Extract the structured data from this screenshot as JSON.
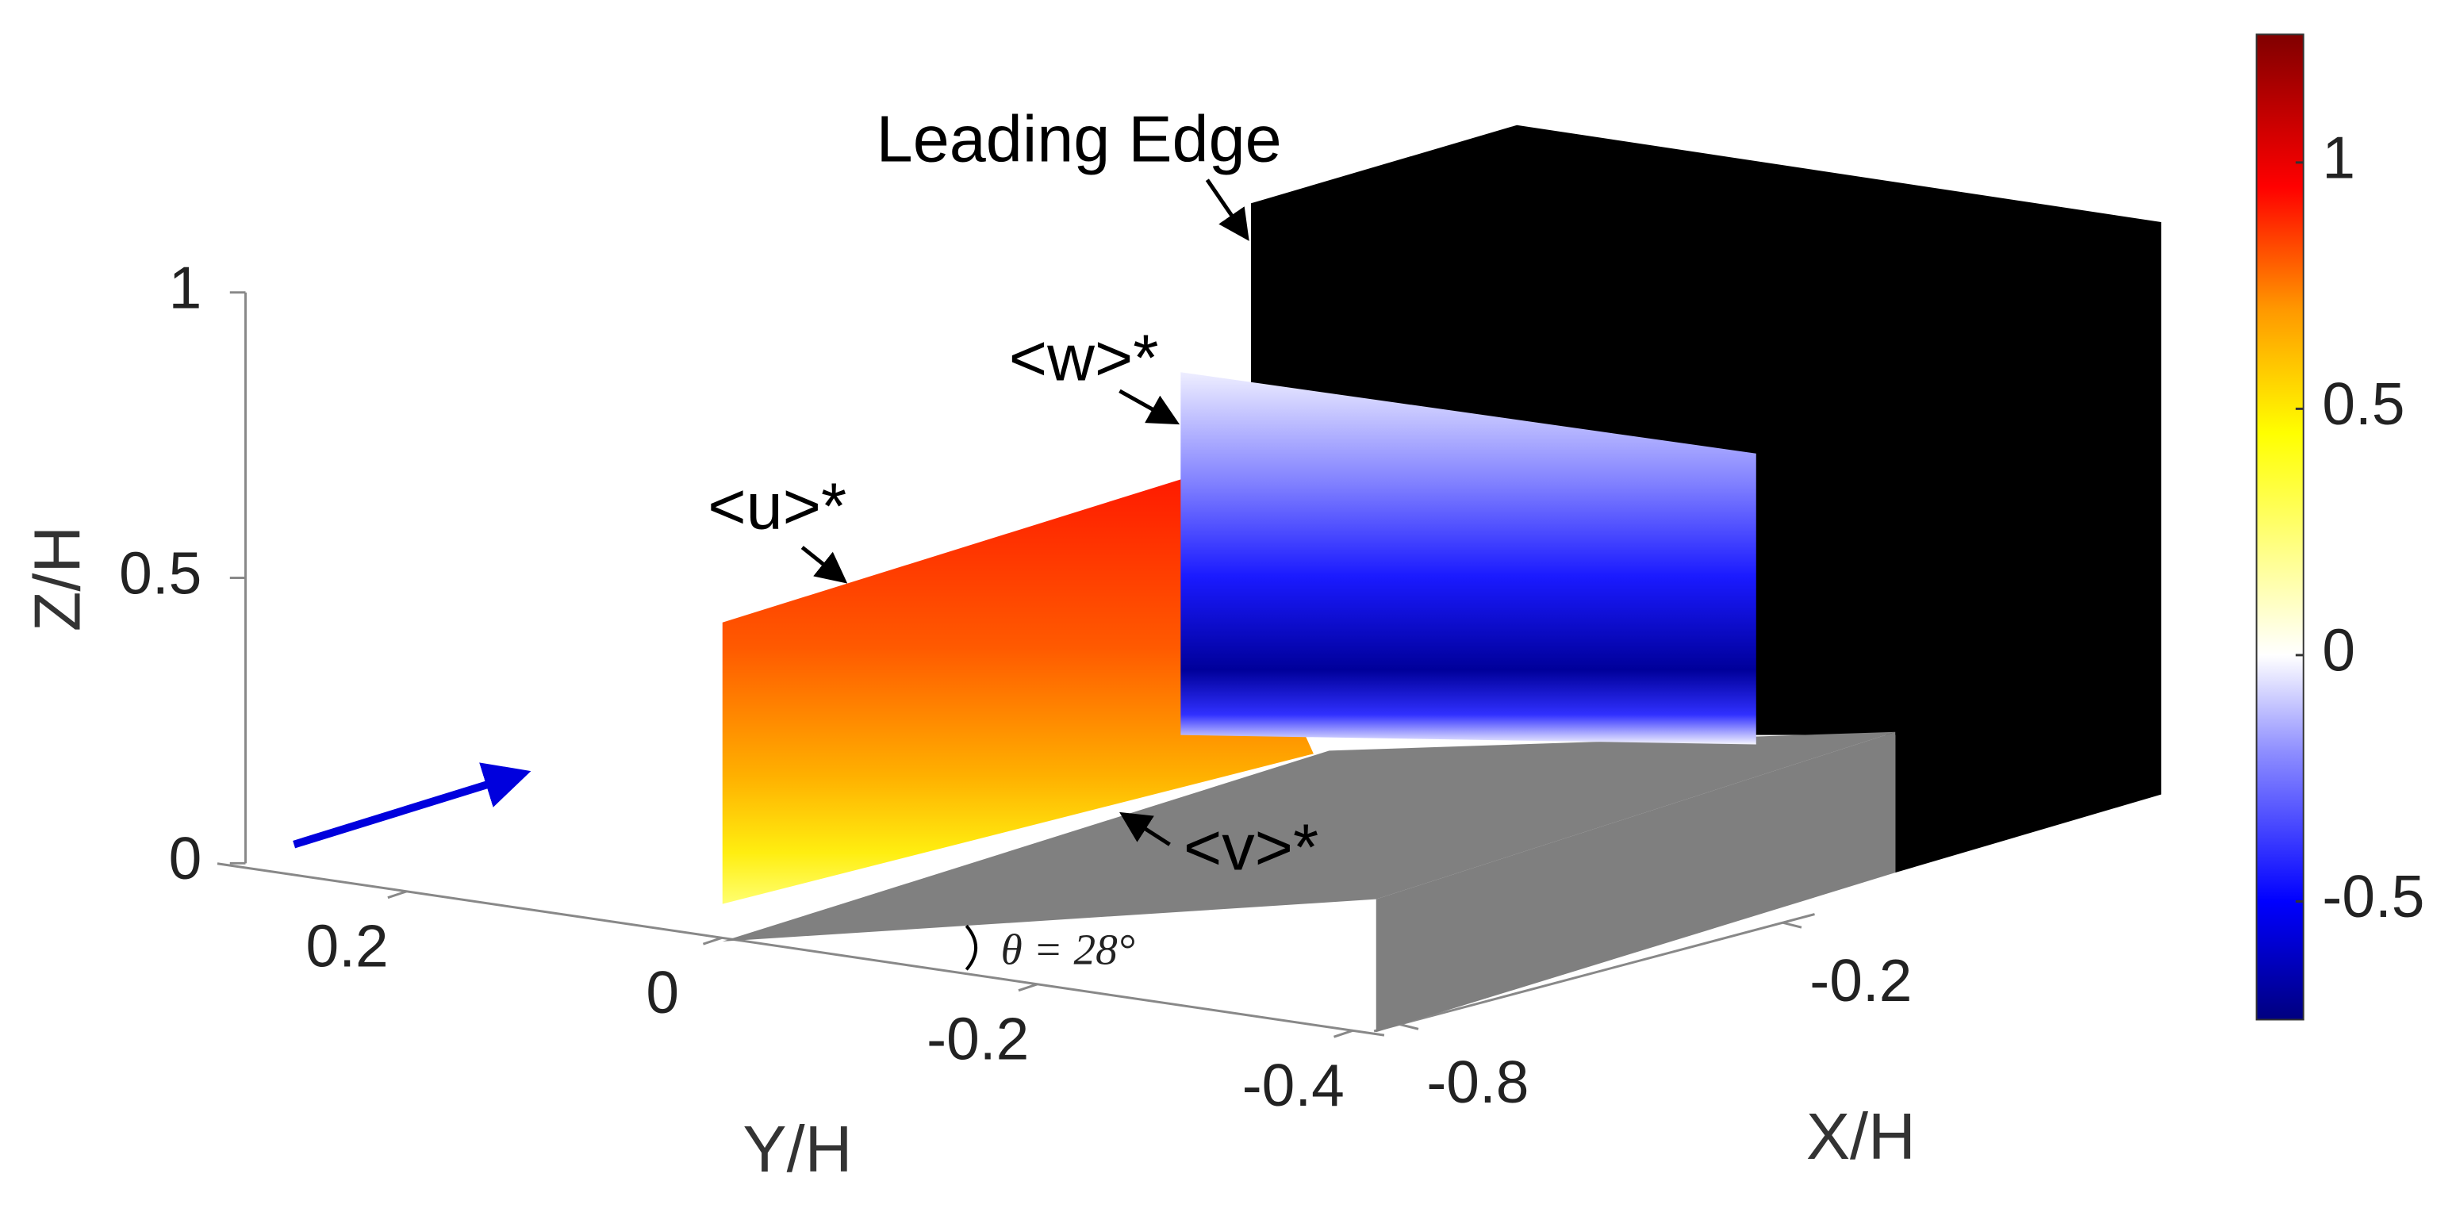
{
  "chart_data": {
    "type": "surface3d",
    "annotations": [
      "Leading Edge",
      "<w>*",
      "<u>*",
      "<v>*",
      "θ = 28°"
    ],
    "xlabel": "X/H",
    "ylabel": "Y/H",
    "zlabel": "Z/H",
    "xlim": [
      -0.84,
      -0.15
    ],
    "xticks": [
      -0.8,
      -0.2
    ],
    "ylim": [
      0.32,
      -0.42
    ],
    "yticks": [
      0.2,
      0,
      -0.2,
      -0.4
    ],
    "zlim": [
      0,
      1
    ],
    "zticks": [
      0,
      0.5,
      1
    ],
    "clim": [
      -0.74,
      1.26
    ],
    "cticks": [
      -0.5,
      0,
      0.5,
      1
    ],
    "colormap": [
      {
        "value": -0.74,
        "color": "#00007f"
      },
      {
        "value": -0.5,
        "color": "#0000ff"
      },
      {
        "value": -0.2,
        "color": "#8c8cff"
      },
      {
        "value": 0,
        "color": "#ffffff"
      },
      {
        "value": 0.45,
        "color": "#ffff00"
      },
      {
        "value": 0.7,
        "color": "#ff9900"
      },
      {
        "value": 0.95,
        "color": "#ff0000"
      },
      {
        "value": 1.26,
        "color": "#800000"
      }
    ]
  }
}
